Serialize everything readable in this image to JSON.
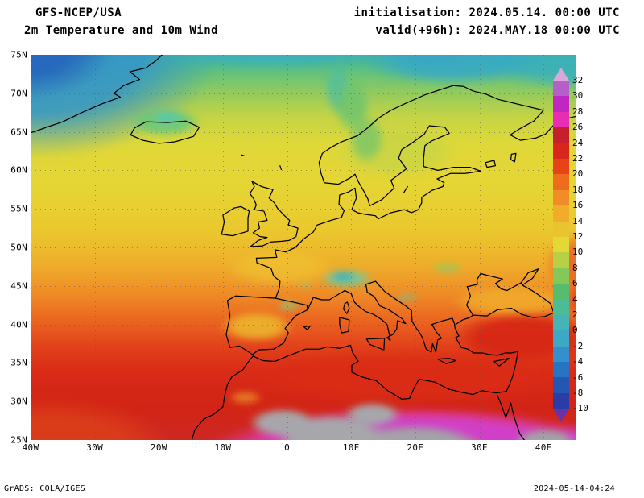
{
  "header": {
    "model": "GFS-NCEP/USA",
    "title": "2m Temperature and 10m Wind",
    "init": "initialisation: 2024.05.14. 00:00 UTC",
    "valid": "valid(+96h): 2024.MAY.18 00:00 UTC"
  },
  "footer": {
    "left": "GrADS: COLA/IGES",
    "right": "2024-05-14-04:24"
  },
  "axes": {
    "lat": [
      "75N",
      "70N",
      "65N",
      "60N",
      "55N",
      "50N",
      "45N",
      "40N",
      "35N",
      "30N",
      "25N"
    ],
    "lon": [
      "40W",
      "30W",
      "20W",
      "10W",
      "0",
      "10E",
      "20E",
      "30E",
      "40E"
    ]
  },
  "legend": {
    "labels": [
      "32",
      "30",
      "28",
      "26",
      "24",
      "22",
      "20",
      "18",
      "16",
      "14",
      "12",
      "10",
      "8",
      "6",
      "4",
      "2",
      "0",
      "-2",
      "-4",
      "-6",
      "-8",
      "-10"
    ],
    "colors": [
      "#d9a8d9",
      "#b75fc9",
      "#c026c0",
      "#e62db4",
      "#c6202c",
      "#d8261a",
      "#e64316",
      "#ee6c1e",
      "#f08d26",
      "#f0ac2a",
      "#e9c42e",
      "#e4d836",
      "#b8d046",
      "#84c85a",
      "#58bc6e",
      "#4cbc96",
      "#44b4b6",
      "#3ca8c6",
      "#3490cc",
      "#2874c4",
      "#2456b4",
      "#2c3ca6",
      "#6832aa"
    ]
  },
  "chart_data": {
    "type": "heatmap",
    "title": "2m Temperature and 10m Wind",
    "model": "GFS-NCEP/USA",
    "initialisation": "2024.05.14. 00:00 UTC",
    "valid": "(+96h) 2024.MAY.18 00:00 UTC",
    "lon_range_deg": [
      -40,
      45
    ],
    "lat_range_deg": [
      25,
      75
    ],
    "lat_tick_step_deg": 5,
    "lon_tick_step_deg": 10,
    "grid": "dotted graticule",
    "legend_position": "right",
    "colorbar_values_c": [
      32,
      30,
      28,
      26,
      24,
      22,
      20,
      18,
      16,
      14,
      12,
      10,
      8,
      6,
      4,
      2,
      0,
      -2,
      -4,
      -6,
      -8,
      -10
    ],
    "approx_field_values_c": [
      {
        "area": "Greenland Sea / NW corner",
        "t": "-4 to 2"
      },
      {
        "area": "Norwegian and Barents Seas (70-75N)",
        "t": "0 to 6"
      },
      {
        "area": "Iceland",
        "t": "2 to 8"
      },
      {
        "area": "Scandinavian mountains",
        "t": "4 to 8"
      },
      {
        "area": "Scandinavia / Baltic",
        "t": "8 to 12"
      },
      {
        "area": "British Isles",
        "t": "10 to 14"
      },
      {
        "area": "Central Europe",
        "t": "12 to 16"
      },
      {
        "area": "Alps",
        "t": "0 to 8"
      },
      {
        "area": "Iberia",
        "t": "14 to 20"
      },
      {
        "area": "Black Sea",
        "t": "14 to 18"
      },
      {
        "area": "Mediterranean Sea",
        "t": "18 to 24"
      },
      {
        "area": "Anatolia / Turkey",
        "t": "20 to 24"
      },
      {
        "area": "North Africa coast",
        "t": "22 to 26"
      },
      {
        "area": "Sahara interior",
        "t": "28 to above 32"
      }
    ]
  }
}
